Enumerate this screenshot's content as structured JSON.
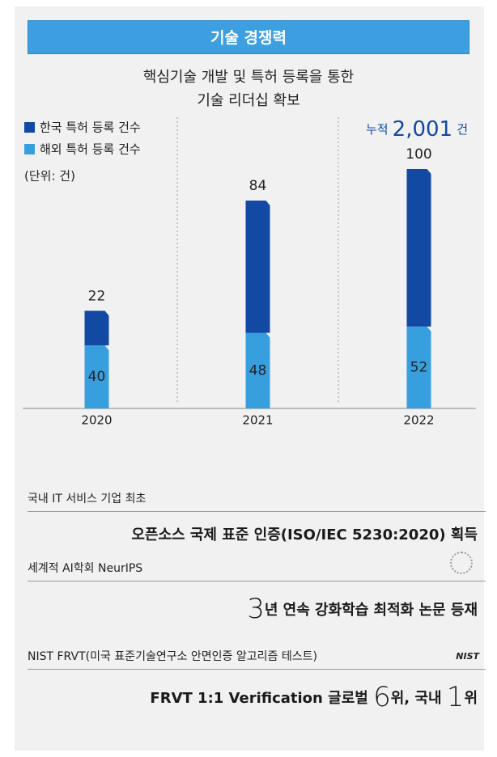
{
  "header": {
    "title": "기술 경쟁력"
  },
  "chart_data": {
    "type": "bar",
    "stacked": true,
    "title": [
      "핵심기술 개발 및 특허 등록을 통한",
      "기술 리더십 확보"
    ],
    "unit": "(단위: 건)",
    "categories": [
      "2020",
      "2021",
      "2022"
    ],
    "series": [
      {
        "name": "한국 특허 등록 건수",
        "color": "#1149a3",
        "values": [
          22,
          84,
          100
        ]
      },
      {
        "name": "해외 특허 등록 건수",
        "color": "#389fdf",
        "values": [
          40,
          48,
          52
        ]
      }
    ],
    "annotation": {
      "prefix": "누적",
      "value": "2,001",
      "suffix": "건"
    }
  },
  "achievements": [
    {
      "label": "국내 IT 서비스 기업 최초",
      "headline": [
        {
          "text": "오픈소스 국제 표준 인증(ISO/IEC 5230:2020) 획득"
        }
      ]
    },
    {
      "label": "세계적 AI학회 NeurIPS",
      "logo_icon": true,
      "headline": [
        {
          "text": "3",
          "large": true
        },
        {
          "text": "년 연속 강화학습 최적화 논문 등재"
        }
      ]
    },
    {
      "label": "NIST FRVT(미국 표준기술연구소 안면인증 알고리즘 테스트)",
      "logo": "NIST",
      "headline": [
        {
          "text": "FRVT 1:1 Verification 글로벌 "
        },
        {
          "text": "6",
          "large": true
        },
        {
          "text": "위, 국내 "
        },
        {
          "text": "1",
          "large": true
        },
        {
          "text": "위"
        }
      ]
    }
  ]
}
